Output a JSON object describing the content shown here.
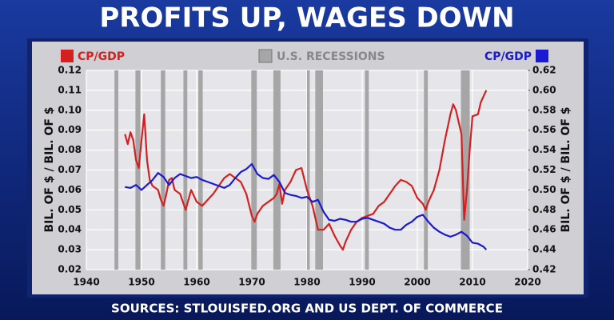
{
  "chart_data": {
    "type": "line",
    "title": "PROFITS UP, WAGES DOWN",
    "source": "SOURCES: STLOUISFED.ORG AND US DEPT. OF COMMERCE",
    "ylabel": "BIL. OF $ / BIL. OF $",
    "y2label": "BIL. OF $ / BIL. OF $",
    "recession_label": "U.S. RECESSIONS",
    "recession_color": "#a6a6a6",
    "recessions": [
      [
        1945.1,
        1945.8
      ],
      [
        1948.9,
        1949.8
      ],
      [
        1953.5,
        1954.3
      ],
      [
        1957.6,
        1958.3
      ],
      [
        1960.3,
        1961.1
      ],
      [
        1969.9,
        1970.9
      ],
      [
        1973.9,
        1975.2
      ],
      [
        1980.0,
        1980.5
      ],
      [
        1981.5,
        1982.9
      ],
      [
        1990.5,
        1991.2
      ],
      [
        2001.2,
        2001.9
      ],
      [
        2007.9,
        2009.5
      ]
    ],
    "xlim": [
      1940,
      2020
    ],
    "xticks": [
      1940,
      1950,
      1960,
      1970,
      1980,
      1990,
      2000,
      2010,
      2020
    ],
    "ylim": [
      0.02,
      0.12
    ],
    "yticks": [
      0.02,
      0.03,
      0.04,
      0.05,
      0.06,
      0.07,
      0.08,
      0.09,
      {
        "value": 0.1,
        "label": "0.10"
      },
      0.11,
      0.12
    ],
    "y2lim": [
      0.42,
      0.62
    ],
    "y2ticks": [
      0.42,
      0.44,
      0.46,
      0.48,
      {
        "value": 0.5,
        "label": "0.50"
      },
      0.52,
      0.54,
      0.56,
      0.58,
      {
        "value": 0.6,
        "label": "0.60"
      },
      0.62
    ],
    "grid": true,
    "series": [
      {
        "name": "CP/GDP",
        "color": "#d42020",
        "axis": "y",
        "x": [
          1947,
          1947.5,
          1948,
          1948.5,
          1949,
          1949.5,
          1950,
          1950.5,
          1951,
          1951.5,
          1952,
          1953,
          1953.5,
          1954,
          1954.5,
          1955,
          1955.5,
          1956,
          1957,
          1958,
          1959,
          1960,
          1961,
          1962,
          1963,
          1964,
          1965,
          1966,
          1967,
          1968,
          1969,
          1970,
          1970.5,
          1971,
          1972,
          1973,
          1974,
          1974.5,
          1975,
          1975.5,
          1976,
          1977,
          1978,
          1979,
          1980,
          1981,
          1982,
          1983,
          1984,
          1985,
          1986,
          1986.5,
          1987,
          1988,
          1989,
          1990,
          1991,
          1992,
          1993,
          1994,
          1995,
          1996,
          1997,
          1998,
          1999,
          2000,
          2001,
          2001.5,
          2002,
          2003,
          2004,
          2005,
          2006,
          2006.5,
          2007,
          2008,
          2008.5,
          2009,
          2009.5,
          2010,
          2011,
          2011.5,
          2012,
          2012.5
        ],
        "values": [
          0.088,
          0.083,
          0.089,
          0.085,
          0.075,
          0.071,
          0.085,
          0.098,
          0.075,
          0.065,
          0.062,
          0.06,
          0.055,
          0.052,
          0.058,
          0.065,
          0.066,
          0.06,
          0.058,
          0.05,
          0.06,
          0.054,
          0.052,
          0.055,
          0.058,
          0.062,
          0.066,
          0.068,
          0.066,
          0.064,
          0.058,
          0.047,
          0.044,
          0.048,
          0.052,
          0.054,
          0.056,
          0.058,
          0.063,
          0.053,
          0.06,
          0.064,
          0.07,
          0.071,
          0.06,
          0.052,
          0.04,
          0.04,
          0.043,
          0.037,
          0.032,
          0.03,
          0.034,
          0.04,
          0.044,
          0.046,
          0.047,
          0.048,
          0.052,
          0.054,
          0.058,
          0.062,
          0.065,
          0.064,
          0.062,
          0.056,
          0.053,
          0.05,
          0.054,
          0.06,
          0.07,
          0.085,
          0.098,
          0.103,
          0.1,
          0.088,
          0.045,
          0.06,
          0.08,
          0.097,
          0.098,
          0.104,
          0.107,
          0.11
        ]
      },
      {
        "name": "CP/GDP",
        "color": "#1a1ad0",
        "axis": "y2",
        "x": [
          1947,
          1948,
          1949,
          1950,
          1951,
          1952,
          1953,
          1954,
          1955,
          1956,
          1957,
          1958,
          1959,
          1960,
          1961,
          1962,
          1963,
          1964,
          1965,
          1966,
          1967,
          1968,
          1969,
          1970,
          1971,
          1972,
          1973,
          1974,
          1975,
          1976,
          1977,
          1978,
          1979,
          1980,
          1981,
          1982,
          1983,
          1984,
          1985,
          1986,
          1987,
          1988,
          1989,
          1990,
          1991,
          1992,
          1993,
          1994,
          1995,
          1996,
          1997,
          1998,
          1999,
          2000,
          2001,
          2002,
          2003,
          2004,
          2005,
          2006,
          2007,
          2008,
          2009,
          2010,
          2011,
          2012,
          2012.5
        ],
        "values": [
          0.503,
          0.502,
          0.505,
          0.5,
          0.505,
          0.51,
          0.517,
          0.513,
          0.505,
          0.512,
          0.516,
          0.514,
          0.512,
          0.513,
          0.51,
          0.508,
          0.506,
          0.504,
          0.502,
          0.505,
          0.512,
          0.518,
          0.521,
          0.526,
          0.516,
          0.512,
          0.511,
          0.515,
          0.508,
          0.497,
          0.495,
          0.494,
          0.492,
          0.493,
          0.488,
          0.49,
          0.478,
          0.47,
          0.469,
          0.471,
          0.47,
          0.468,
          0.468,
          0.471,
          0.472,
          0.47,
          0.468,
          0.466,
          0.462,
          0.46,
          0.46,
          0.465,
          0.468,
          0.473,
          0.475,
          0.468,
          0.462,
          0.458,
          0.455,
          0.453,
          0.455,
          0.458,
          0.454,
          0.447,
          0.446,
          0.443,
          0.44
        ]
      }
    ]
  }
}
